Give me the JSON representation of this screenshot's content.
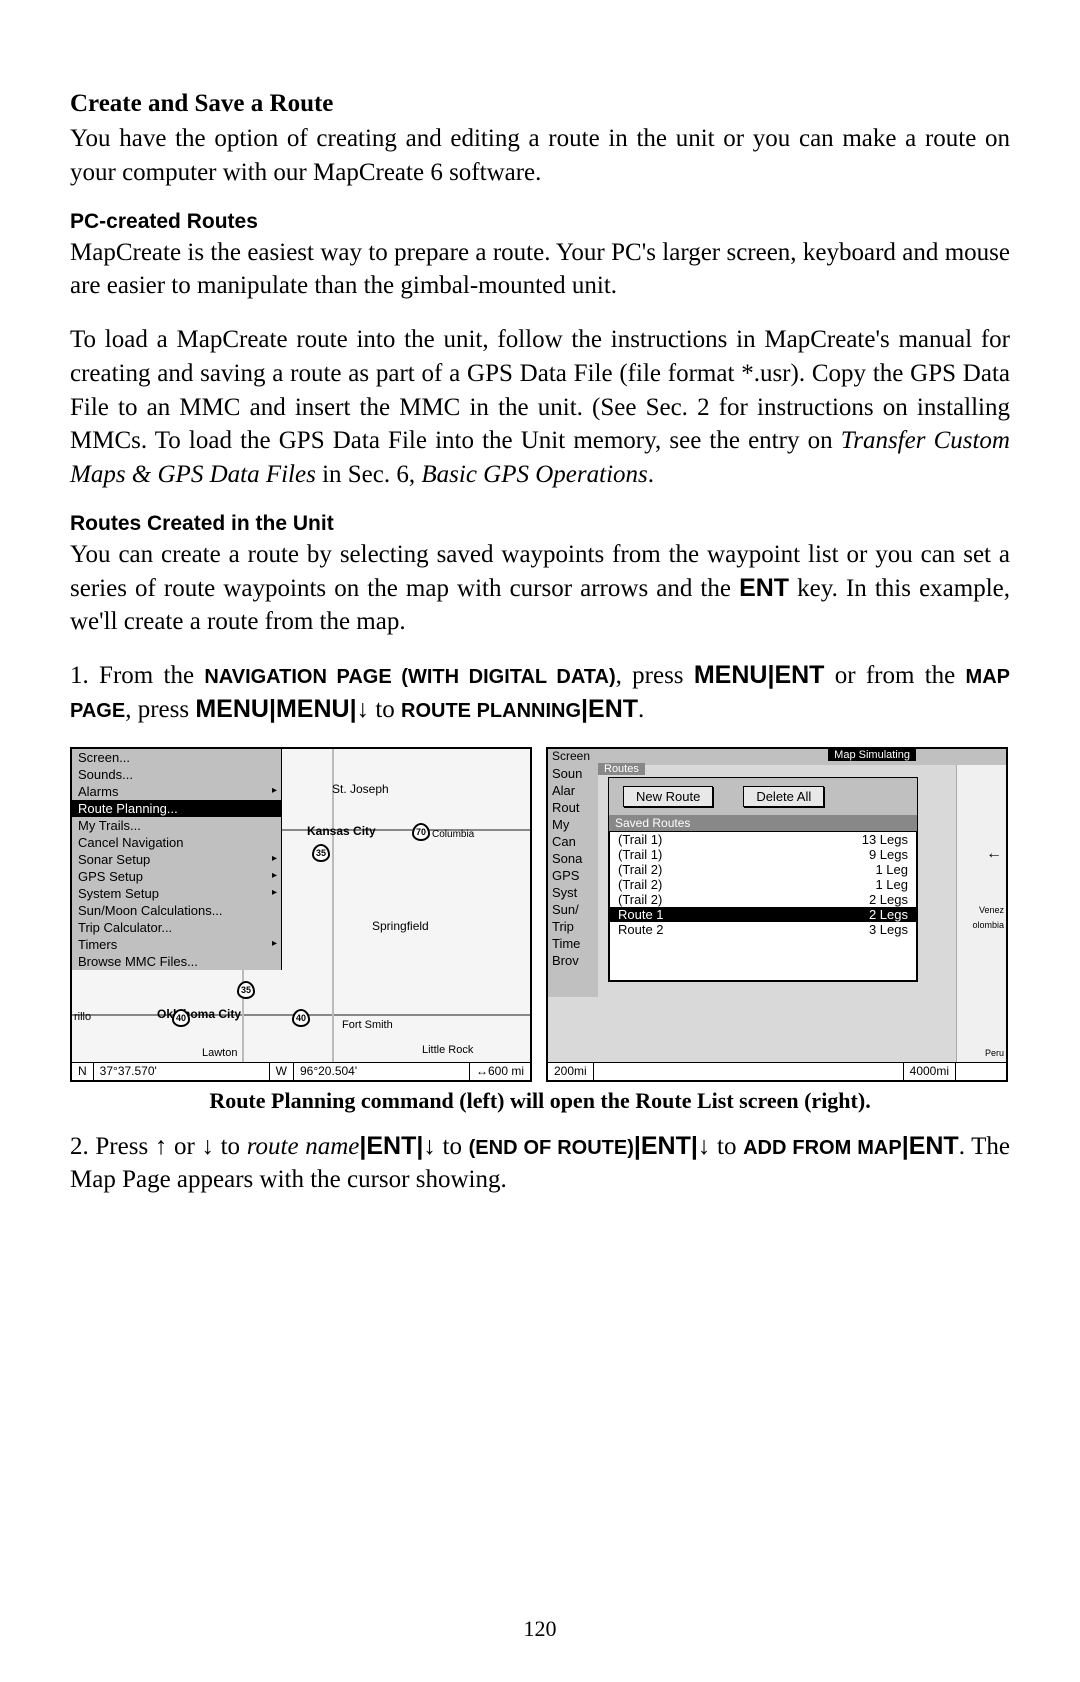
{
  "page_number": "120",
  "headings": {
    "main": "Create and Save a Route",
    "sub1": "PC-created Routes",
    "sub2": "Routes Created in the Unit"
  },
  "paragraphs": {
    "intro": "You have the option of creating and editing a route in the unit or you can make a route on your computer with our MapCreate 6 software.",
    "pc1": "MapCreate is the easiest way to prepare a route. Your PC's larger screen, keyboard and mouse are easier to manipulate than the gimbal-mounted unit.",
    "pc2a": "To load a MapCreate route into the unit, follow the instructions in MapCreate's manual for creating and saving a route as part of a GPS Data File (file format *.usr). Copy the GPS Data File to an MMC and insert the MMC in the unit. (See Sec. 2 for instructions on installing MMCs. To load the GPS Data File into the Unit memory, see the entry on ",
    "pc2b_italic": "Transfer Custom Maps & GPS Data Files",
    "pc2c": " in Sec. 6, ",
    "pc2d_italic": "Basic GPS Operations",
    "pc2e": ".",
    "unit1a": "You can create a route by selecting saved waypoints from the waypoint list or you can set a series of route waypoints on the map with cursor arrows and the ",
    "unit1_key": "ENT",
    "unit1b": " key. In this example, we'll create a route from the map.",
    "step1_pre": "1. From the ",
    "step1_nav": "NAVIGATION PAGE (WITH DIGITAL DATA)",
    "step1_mid1": ", press ",
    "step1_k1": "MENU",
    "step1_k2": "ENT",
    "step1_mid2": " or from the ",
    "step1_map": "MAP PAGE",
    "step1_mid3": ", press ",
    "step1_k3": "MENU",
    "step1_k4": "MENU",
    "step1_mid4": " to ",
    "step1_rp": "ROUTE PLANNING",
    "step1_k5": "ENT",
    "caption": "Route Planning command (left) will open the Route List screen (right).",
    "step2_pre": "2. Press ↑ or ↓ to ",
    "step2_routename": "route name",
    "step2_k1": "ENT",
    "step2_mid1": "↓ to ",
    "step2_eor": "(END OF ROUTE)",
    "step2_k2": "ENT",
    "step2_mid2": "↓ to ",
    "step2_afm": "ADD FROM MAP",
    "step2_k3": "ENT",
    "step2_post": ". The Map Page appears with the cursor showing."
  },
  "left_shot": {
    "menu": [
      "Screen...",
      "Sounds...",
      "Alarms",
      "Route Planning...",
      "My Trails...",
      "Cancel Navigation",
      "Sonar Setup",
      "GPS Setup",
      "System Setup",
      "Sun/Moon Calculations...",
      "Trip Calculator...",
      "Timers",
      "Browse MMC Files..."
    ],
    "menu_submenus": [
      false,
      false,
      true,
      false,
      false,
      false,
      true,
      true,
      true,
      false,
      false,
      true,
      false
    ],
    "menu_selected": 3,
    "map_labels": {
      "stjoseph": "St. Joseph",
      "kc": "Kansas City",
      "columbia": "Columbia",
      "springfield": "Springfield",
      "okc": "Oklahoma City",
      "fortsmith": "Fort Smith",
      "littlerock": "Little Rock",
      "lawton": "Lawton",
      "rillo": "rillo"
    },
    "status": {
      "n": "N",
      "lat": "37°37.570'",
      "w": "W",
      "lon": "96°20.504'",
      "scale": "600 mi"
    }
  },
  "right_shot": {
    "topbar": {
      "screen": "Screen",
      "simulating": "Map   Simulating"
    },
    "sliver": [
      "Soun",
      "Alar",
      "Rout",
      "My",
      "Can",
      "Sona",
      "GPS",
      "Syst",
      "Sun/",
      "Trip",
      "Time",
      "Brov"
    ],
    "tab": "Routes",
    "buttons": {
      "new": "New Route",
      "del": "Delete All"
    },
    "saved_hdr": "Saved Routes",
    "routes": [
      {
        "name": "(Trail 1)",
        "legs": "13 Legs"
      },
      {
        "name": "(Trail 1)",
        "legs": "9 Legs"
      },
      {
        "name": "(Trail 2)",
        "legs": "1 Leg"
      },
      {
        "name": "(Trail 2)",
        "legs": "1 Leg"
      },
      {
        "name": "(Trail 2)",
        "legs": "2 Legs"
      },
      {
        "name": "Route 1",
        "legs": "2 Legs"
      },
      {
        "name": "Route 2",
        "legs": "3 Legs"
      }
    ],
    "routes_selected": 5,
    "status": {
      "left": "200mi",
      "right": "4000mi"
    },
    "side_labels": {
      "venez": "Venez",
      "olombia": "olombia",
      "peru": "Peru"
    }
  }
}
